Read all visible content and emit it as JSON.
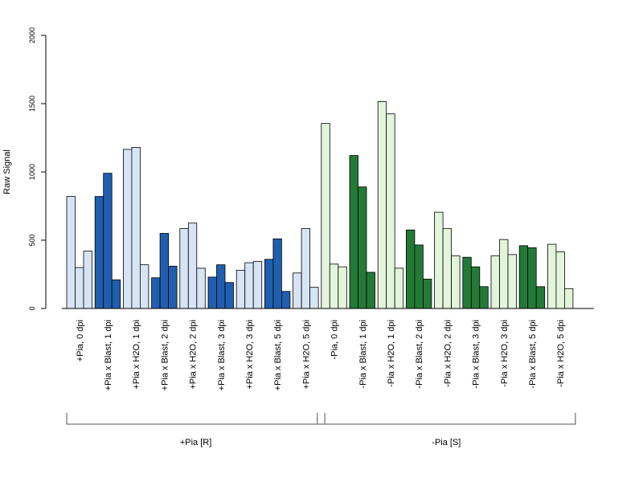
{
  "chart_data": {
    "type": "bar",
    "ylabel": "Raw Signal",
    "ylim": [
      0,
      2000
    ],
    "yticks": [
      0,
      500,
      1000,
      1500,
      2000
    ],
    "grid": false,
    "colors": {
      "light_blue": "#d6e4f5",
      "dark_blue": "#1f5faf",
      "light_green": "#e2f5db",
      "dark_green": "#237a36"
    },
    "categories": [
      {
        "label": "+Pia, 0 dpi",
        "fill": "light_blue",
        "values": [
          820,
          300,
          420
        ]
      },
      {
        "label": "+Pia x Blast, 1 dpi",
        "fill": "dark_blue",
        "values": [
          820,
          990,
          210
        ]
      },
      {
        "label": "+Pia x H2O, 1 dpi",
        "fill": "light_blue",
        "values": [
          1165,
          1180,
          320
        ]
      },
      {
        "label": "+Pia x Blast, 2 dpi",
        "fill": "dark_blue",
        "values": [
          225,
          550,
          310
        ]
      },
      {
        "label": "+Pia x H2O, 2 dpi",
        "fill": "light_blue",
        "values": [
          585,
          625,
          295
        ]
      },
      {
        "label": "+Pia x Blast, 3 dpi",
        "fill": "dark_blue",
        "values": [
          230,
          320,
          190
        ]
      },
      {
        "label": "+Pia x H2O, 3 dpi",
        "fill": "light_blue",
        "values": [
          280,
          335,
          345
        ]
      },
      {
        "label": "+Pia x Blast, 5 dpi",
        "fill": "dark_blue",
        "values": [
          360,
          510,
          125
        ]
      },
      {
        "label": "+Pia x H2O, 5 dpi",
        "fill": "light_blue",
        "values": [
          260,
          585,
          155
        ]
      },
      {
        "label": "-Pia, 0 dpi",
        "fill": "light_green",
        "values": [
          1355,
          325,
          305
        ]
      },
      {
        "label": "-Pia x Blast, 1 dpi",
        "fill": "dark_green",
        "values": [
          1120,
          890,
          265
        ]
      },
      {
        "label": "-Pia x H2O, 1 dpi",
        "fill": "light_green",
        "values": [
          1515,
          1425,
          295
        ]
      },
      {
        "label": "-Pia x Blast, 2 dpi",
        "fill": "dark_green",
        "values": [
          575,
          465,
          215
        ]
      },
      {
        "label": "-Pia x H2O, 2 dpi",
        "fill": "light_green",
        "values": [
          705,
          585,
          385
        ]
      },
      {
        "label": "-Pia x Blast, 3 dpi",
        "fill": "dark_green",
        "values": [
          375,
          305,
          160
        ]
      },
      {
        "label": "-Pia x H2O, 3 dpi",
        "fill": "light_green",
        "values": [
          385,
          505,
          395
        ]
      },
      {
        "label": "-Pia x Blast, 5 dpi",
        "fill": "dark_green",
        "values": [
          460,
          445,
          160
        ]
      },
      {
        "label": "-Pia x H2O, 5 dpi",
        "fill": "light_green",
        "values": [
          470,
          415,
          145
        ]
      }
    ],
    "groups": [
      {
        "label": "+Pia [R]",
        "from": 0,
        "to": 8
      },
      {
        "label": "-Pia [S]",
        "from": 9,
        "to": 17
      }
    ]
  }
}
